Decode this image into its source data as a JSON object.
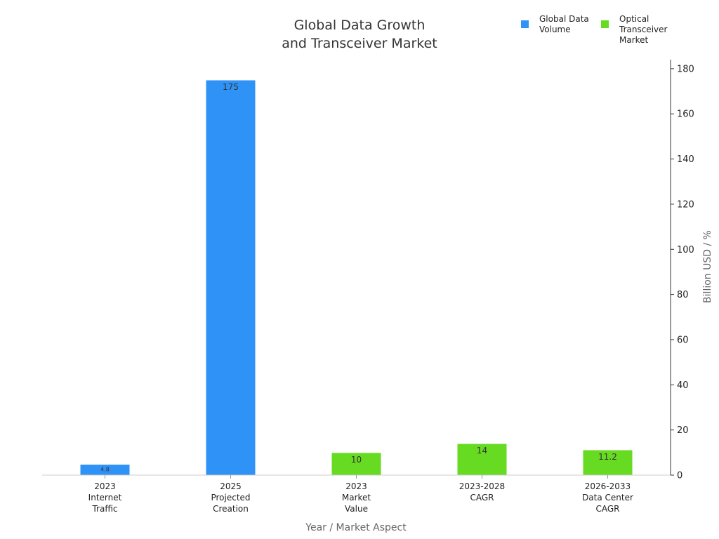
{
  "chart_data": {
    "type": "bar",
    "title": [
      "Global Data Growth",
      "and Transceiver Market"
    ],
    "xlabel": "Year / Market Aspect",
    "ylabel": "Billion USD / %",
    "categories": [
      [
        "2023",
        "Internet",
        "Traffic"
      ],
      [
        "2025",
        "Projected",
        "Creation"
      ],
      [
        "2023",
        "Market",
        "Value"
      ],
      [
        "2023-2028",
        "CAGR"
      ],
      [
        "2026-2033",
        "Data Center",
        "CAGR"
      ]
    ],
    "series": [
      {
        "name": [
          "Global Data",
          "Volume"
        ],
        "color": "#2f92f7",
        "values": [
          4.8,
          175,
          null,
          null,
          null
        ]
      },
      {
        "name": [
          "Optical",
          "Transceiver",
          "Market"
        ],
        "color": "#66db22",
        "values": [
          null,
          null,
          10,
          14,
          11.2
        ]
      }
    ],
    "ylim": [
      0,
      184
    ],
    "yticks": [
      0,
      20,
      40,
      60,
      80,
      100,
      120,
      140,
      160,
      180
    ],
    "y_axis_side": "right",
    "grid": false,
    "legend_position": "top-right"
  }
}
